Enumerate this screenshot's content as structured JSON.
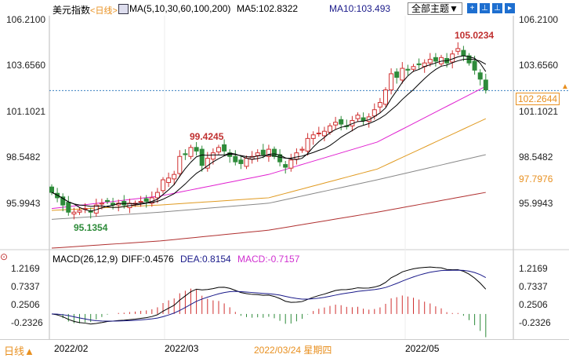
{
  "header": {
    "title": "美元指数",
    "period": "<日线>",
    "ma_label": "MA(5,10,30,60,100,200)",
    "ma5": "MA5:102.8322",
    "ma10": "MA10:103.493",
    "theme_button": "全部主题▼",
    "icons": [
      "crosshair-icon",
      "zoom-in-icon",
      "zoom-out-icon",
      "forward-icon"
    ]
  },
  "price_axis": {
    "ticks": [
      "106.2100",
      "103.6560",
      "101.1021",
      "98.5482",
      "95.9943"
    ],
    "extra_right": "97.7976",
    "last_price": "102.2644"
  },
  "annotations": {
    "high1": "105.0234",
    "high2": "99.4245",
    "low": "95.1354"
  },
  "macd": {
    "label": "MACD(26,12,9)",
    "diff": "DIFF:0.4576",
    "dea": "DEA:0.8154",
    "macd": "MACD:-0.7157",
    "ticks": [
      "1.2169",
      "0.7337",
      "0.2506",
      "-0.2326"
    ]
  },
  "footer": {
    "period": "日线▲",
    "dates": [
      "2022/02",
      "2022/03",
      "2022/03/24 星期四",
      "2022/05"
    ]
  },
  "colors": {
    "up": "#d03030",
    "down": "#2e8b3a",
    "ma5": "#000000",
    "ma10": "#000000",
    "ma30": "#e020d0",
    "ma60": "#e09a20",
    "ma100": "#888888",
    "ma200": "#b03030",
    "dea": "#1a1a8a"
  },
  "chart_data": {
    "type": "candlestick",
    "closes": [
      96.6,
      96.3,
      95.9,
      95.5,
      95.5,
      95.6,
      95.7,
      95.5,
      95.9,
      96.0,
      96.1,
      95.9,
      96.0,
      95.9,
      96.0,
      96.0,
      96.1,
      96.1,
      96.3,
      96.6,
      97.3,
      97.4,
      97.6,
      98.6,
      98.7,
      99.1,
      98.9,
      98.1,
      98.5,
      98.8,
      99.1,
      98.9,
      98.6,
      98.3,
      98.2,
      98.5,
      98.6,
      98.8,
      98.7,
      99.0,
      98.6,
      98.3,
      98.0,
      98.4,
      98.8,
      99.0,
      99.6,
      99.8,
      99.9,
      100.0,
      100.3,
      100.5,
      100.4,
      100.3,
      100.6,
      100.9,
      100.6,
      100.8,
      101.2,
      101.6,
      102.3,
      103.2,
      103.0,
      103.5,
      103.4,
      103.6,
      103.7,
      103.8,
      104.0,
      103.9,
      104.1,
      103.8,
      104.3,
      104.6,
      104.2,
      103.8,
      103.4,
      102.9,
      102.3
    ],
    "long_ma": {
      "ma30": [
        95.7,
        96.4,
        97.6,
        99.4,
        102.5
      ],
      "ma60": [
        95.6,
        95.9,
        96.3,
        97.9,
        100.7
      ],
      "ma100": [
        95.1,
        95.5,
        96.0,
        97.3,
        98.7
      ],
      "ma200": [
        93.5,
        93.9,
        94.5,
        95.5,
        96.6
      ]
    }
  }
}
